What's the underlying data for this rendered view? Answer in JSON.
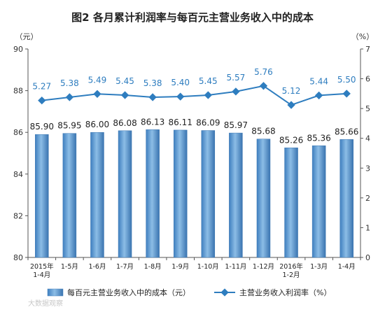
{
  "chart_data": {
    "type": "bar",
    "title": "图2  各月累计利润率与每百元主营业务收入中的成本",
    "left_unit": "（元）",
    "right_unit": "（%）",
    "categories": [
      [
        "2015年",
        "1-4月"
      ],
      [
        "1-5月"
      ],
      [
        "1-6月"
      ],
      [
        "1-7月"
      ],
      [
        "1-8月"
      ],
      [
        "1-9月"
      ],
      [
        "1-10月"
      ],
      [
        "1-11月"
      ],
      [
        "1-12月"
      ],
      [
        "2016年",
        "1-2月"
      ],
      [
        "1-3月"
      ],
      [
        "1-4月"
      ]
    ],
    "y_left": {
      "min": 80,
      "max": 90,
      "ticks": [
        80,
        82,
        84,
        86,
        88,
        90
      ]
    },
    "y_right": {
      "min": 0,
      "max": 7,
      "ticks": [
        0,
        1,
        2,
        3,
        4,
        5,
        6,
        7
      ]
    },
    "grid": false,
    "legend_position": "bottom",
    "series": [
      {
        "name": "每百元主营业务收入中的成本（元）",
        "type": "bar",
        "axis": "left",
        "color": "#5b9bd5",
        "values": [
          85.9,
          85.95,
          86.0,
          86.08,
          86.13,
          86.11,
          86.09,
          85.97,
          85.68,
          85.26,
          85.36,
          85.66
        ],
        "labels": [
          "85.90",
          "85.95",
          "86.00",
          "86.08",
          "86.13",
          "86.11",
          "86.09",
          "85.97",
          "85.68",
          "85.26",
          "85.36",
          "85.66"
        ]
      },
      {
        "name": "主营业务收入利润率（%）",
        "type": "line",
        "axis": "right",
        "color": "#2e7dbf",
        "values": [
          5.27,
          5.38,
          5.49,
          5.45,
          5.38,
          5.4,
          5.45,
          5.57,
          5.76,
          5.12,
          5.44,
          5.5
        ],
        "labels": [
          "5.27",
          "5.38",
          "5.49",
          "5.45",
          "5.38",
          "5.40",
          "5.45",
          "5.57",
          "5.76",
          "5.12",
          "5.44",
          "5.50"
        ]
      }
    ]
  },
  "watermark": "大数据观察"
}
